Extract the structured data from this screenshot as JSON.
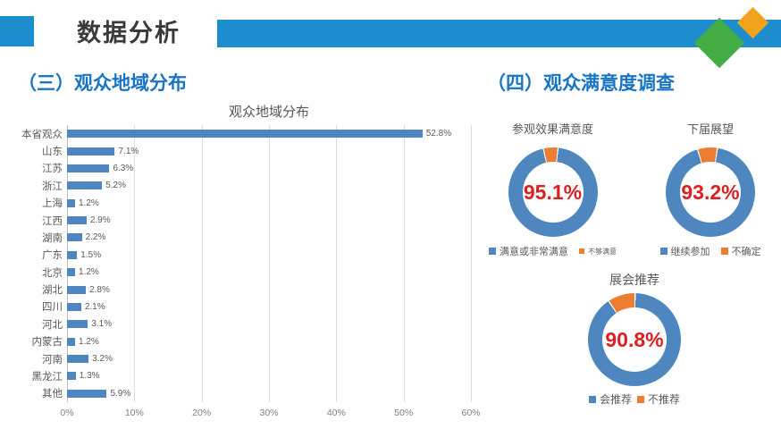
{
  "header": {
    "title": "数据分析",
    "accent_blue": "#1e8dce",
    "diamond_green": "#44ad45",
    "diamond_orange": "#f2a31d"
  },
  "sections": {
    "left_heading": "（三）观众地域分布",
    "right_heading": "（四）观众满意度调查",
    "heading_color": "#1874c5"
  },
  "colors": {
    "series_blue": "#4e86c0",
    "series_orange": "#ed7d31",
    "center_label_red": "#dd1f1f"
  },
  "chart_data": [
    {
      "type": "bar",
      "orientation": "horizontal",
      "title": "观众地域分布",
      "categories": [
        "本省观众",
        "山东",
        "江苏",
        "浙江",
        "上海",
        "江西",
        "湖南",
        "广东",
        "北京",
        "湖北",
        "四川",
        "河北",
        "内蒙古",
        "河南",
        "黑龙江",
        "其他"
      ],
      "values": [
        52.8,
        7.1,
        6.3,
        5.2,
        1.2,
        2.9,
        2.2,
        1.5,
        1.2,
        2.8,
        2.1,
        3.1,
        1.2,
        3.2,
        1.3,
        5.9
      ],
      "value_labels": [
        "52.8%",
        "7.1%",
        "6.3%",
        "5.2%",
        "1.2%",
        "2.9%",
        "2.2%",
        "1.5%",
        "1.2%",
        "2.8%",
        "2.1%",
        "3.1%",
        "1.2%",
        "3.2%",
        "1.3%",
        "5.9%"
      ],
      "xlim": [
        0,
        60
      ],
      "x_ticks": [
        "0%",
        "10%",
        "20%",
        "30%",
        "40%",
        "50%",
        "60%"
      ],
      "bar_color": "#4e86c0",
      "grid": true,
      "legend": "none"
    },
    {
      "type": "donut",
      "title": "参观效果满意度",
      "center_label": "95.1%",
      "start_angle": -12,
      "slices": [
        {
          "name": "满意或非常满意",
          "value": 95.1,
          "color": "#4e86c0"
        },
        {
          "name": "不够满意",
          "value": 4.9,
          "color": "#ed7d31"
        }
      ]
    },
    {
      "type": "donut",
      "title": "下届展望",
      "center_label": "93.2%",
      "start_angle": -16,
      "slices": [
        {
          "name": "继续参加",
          "value": 93.2,
          "color": "#4e86c0"
        },
        {
          "name": "不确定",
          "value": 6.8,
          "color": "#ed7d31"
        }
      ]
    },
    {
      "type": "donut",
      "title": "展会推荐",
      "center_label": "90.8%",
      "start_angle": -33,
      "slices": [
        {
          "name": "会推荐",
          "value": 90.8,
          "color": "#4e86c0"
        },
        {
          "name": "不推荐",
          "value": 9.2,
          "color": "#ed7d31"
        }
      ]
    }
  ]
}
